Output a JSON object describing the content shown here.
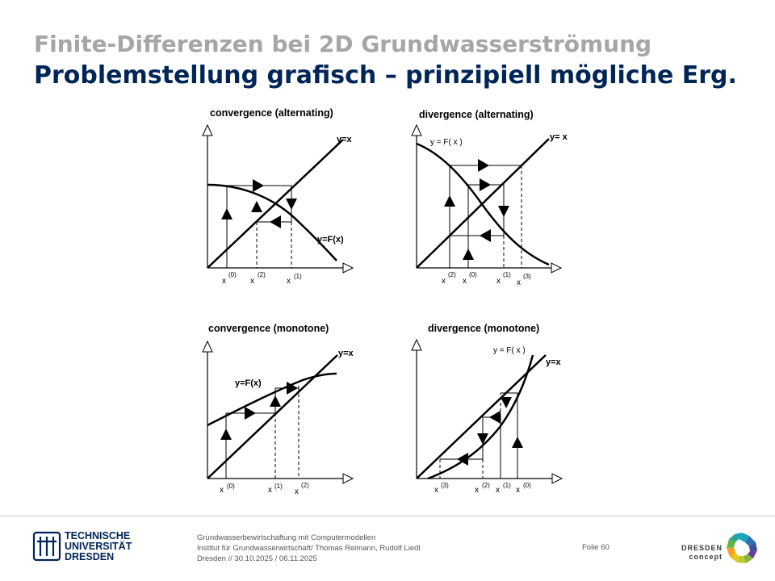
{
  "slide": {
    "title_line1": "Finite-Differenzen bei 2D Grundwasserströmung",
    "title_line2": "Problemstellung grafisch – prinzipiell mögliche Erg."
  },
  "panels": {
    "p1": {
      "title": "convergence (alternating)",
      "curve_label": "y=F(x)",
      "diag_label": "y=x",
      "x_labels": [
        "x",
        "x",
        "x"
      ],
      "x_sups": [
        "(0)",
        "(2)",
        "(1)"
      ]
    },
    "p2": {
      "title": "divergence (alternating)",
      "curve_label": "y = F( x )",
      "diag_label": "y= x",
      "x_labels": [
        "x",
        "x",
        "x",
        "x"
      ],
      "x_sups": [
        "(2)",
        "(0)",
        "(1)",
        "(3)"
      ]
    },
    "p3": {
      "title": "convergence (monotone)",
      "curve_label": "y=F(x)",
      "diag_label": "y=x",
      "x_labels": [
        "x",
        "x",
        "x"
      ],
      "x_sups": [
        "(0)",
        "(1)",
        "(2)"
      ]
    },
    "p4": {
      "title": "divergence (monotone)",
      "curve_label": "y = F( x )",
      "diag_label": "y=x",
      "x_labels": [
        "x",
        "x",
        "x",
        "x"
      ],
      "x_sups": [
        "(3)",
        "(2)",
        "(1)",
        "(0)"
      ]
    }
  },
  "footer": {
    "university_line1": "TECHNISCHE",
    "university_line2": "UNIVERSITÄT",
    "university_line3": "DRESDEN",
    "course": "Grundwasserbewirtschaftung mit Computermodellen",
    "institute": "Institut für Grundwasserwirtschaft/ Thomas Reimann, Rudolf Liedl",
    "dates": "Dresden // 30.10.2025 / 06.11.2025",
    "slide_label": "Folie 60",
    "partner_line1": "DRESDEN",
    "partner_line2": "concept"
  },
  "colors": {
    "title_gray": "#a6a6a6",
    "title_navy": "#002557"
  }
}
